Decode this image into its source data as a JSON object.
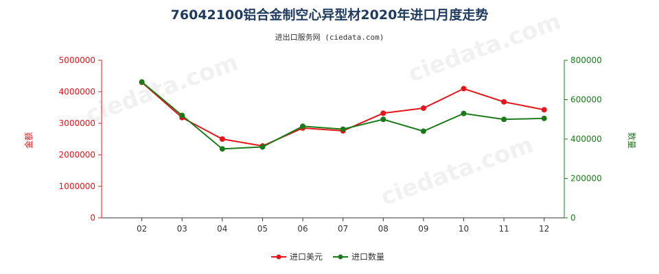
{
  "chart_data": {
    "type": "line",
    "title": "76042100铝合金制空心异型材2020年进口月度走势",
    "subtitle": "进出口服务网 (ciedata.com)",
    "categories": [
      "02",
      "03",
      "04",
      "05",
      "06",
      "07",
      "08",
      "09",
      "10",
      "11",
      "12"
    ],
    "y_left": {
      "label": "金额",
      "range": [
        0,
        5000000
      ],
      "ticks": [
        "0",
        "1000000",
        "2000000",
        "3000000",
        "4000000",
        "5000000"
      ],
      "color": "#e8141a"
    },
    "y_right": {
      "label": "数量",
      "range": [
        0,
        800000
      ],
      "ticks": [
        "0",
        "200000",
        "400000",
        "600000",
        "800000"
      ],
      "color": "#1a7a1a"
    },
    "series": [
      {
        "name": "进口美元",
        "axis": "left",
        "color": "#e8141a",
        "values": [
          4300000,
          3180000,
          2500000,
          2280000,
          2850000,
          2760000,
          3320000,
          3480000,
          4100000,
          3680000,
          3430000
        ]
      },
      {
        "name": "进口数量",
        "axis": "right",
        "color": "#1a7a1a",
        "values": [
          690000,
          520000,
          350000,
          360000,
          465000,
          450000,
          500000,
          440000,
          530000,
          500000,
          505000
        ]
      }
    ],
    "legend_position": "bottom-center",
    "grid": false
  }
}
